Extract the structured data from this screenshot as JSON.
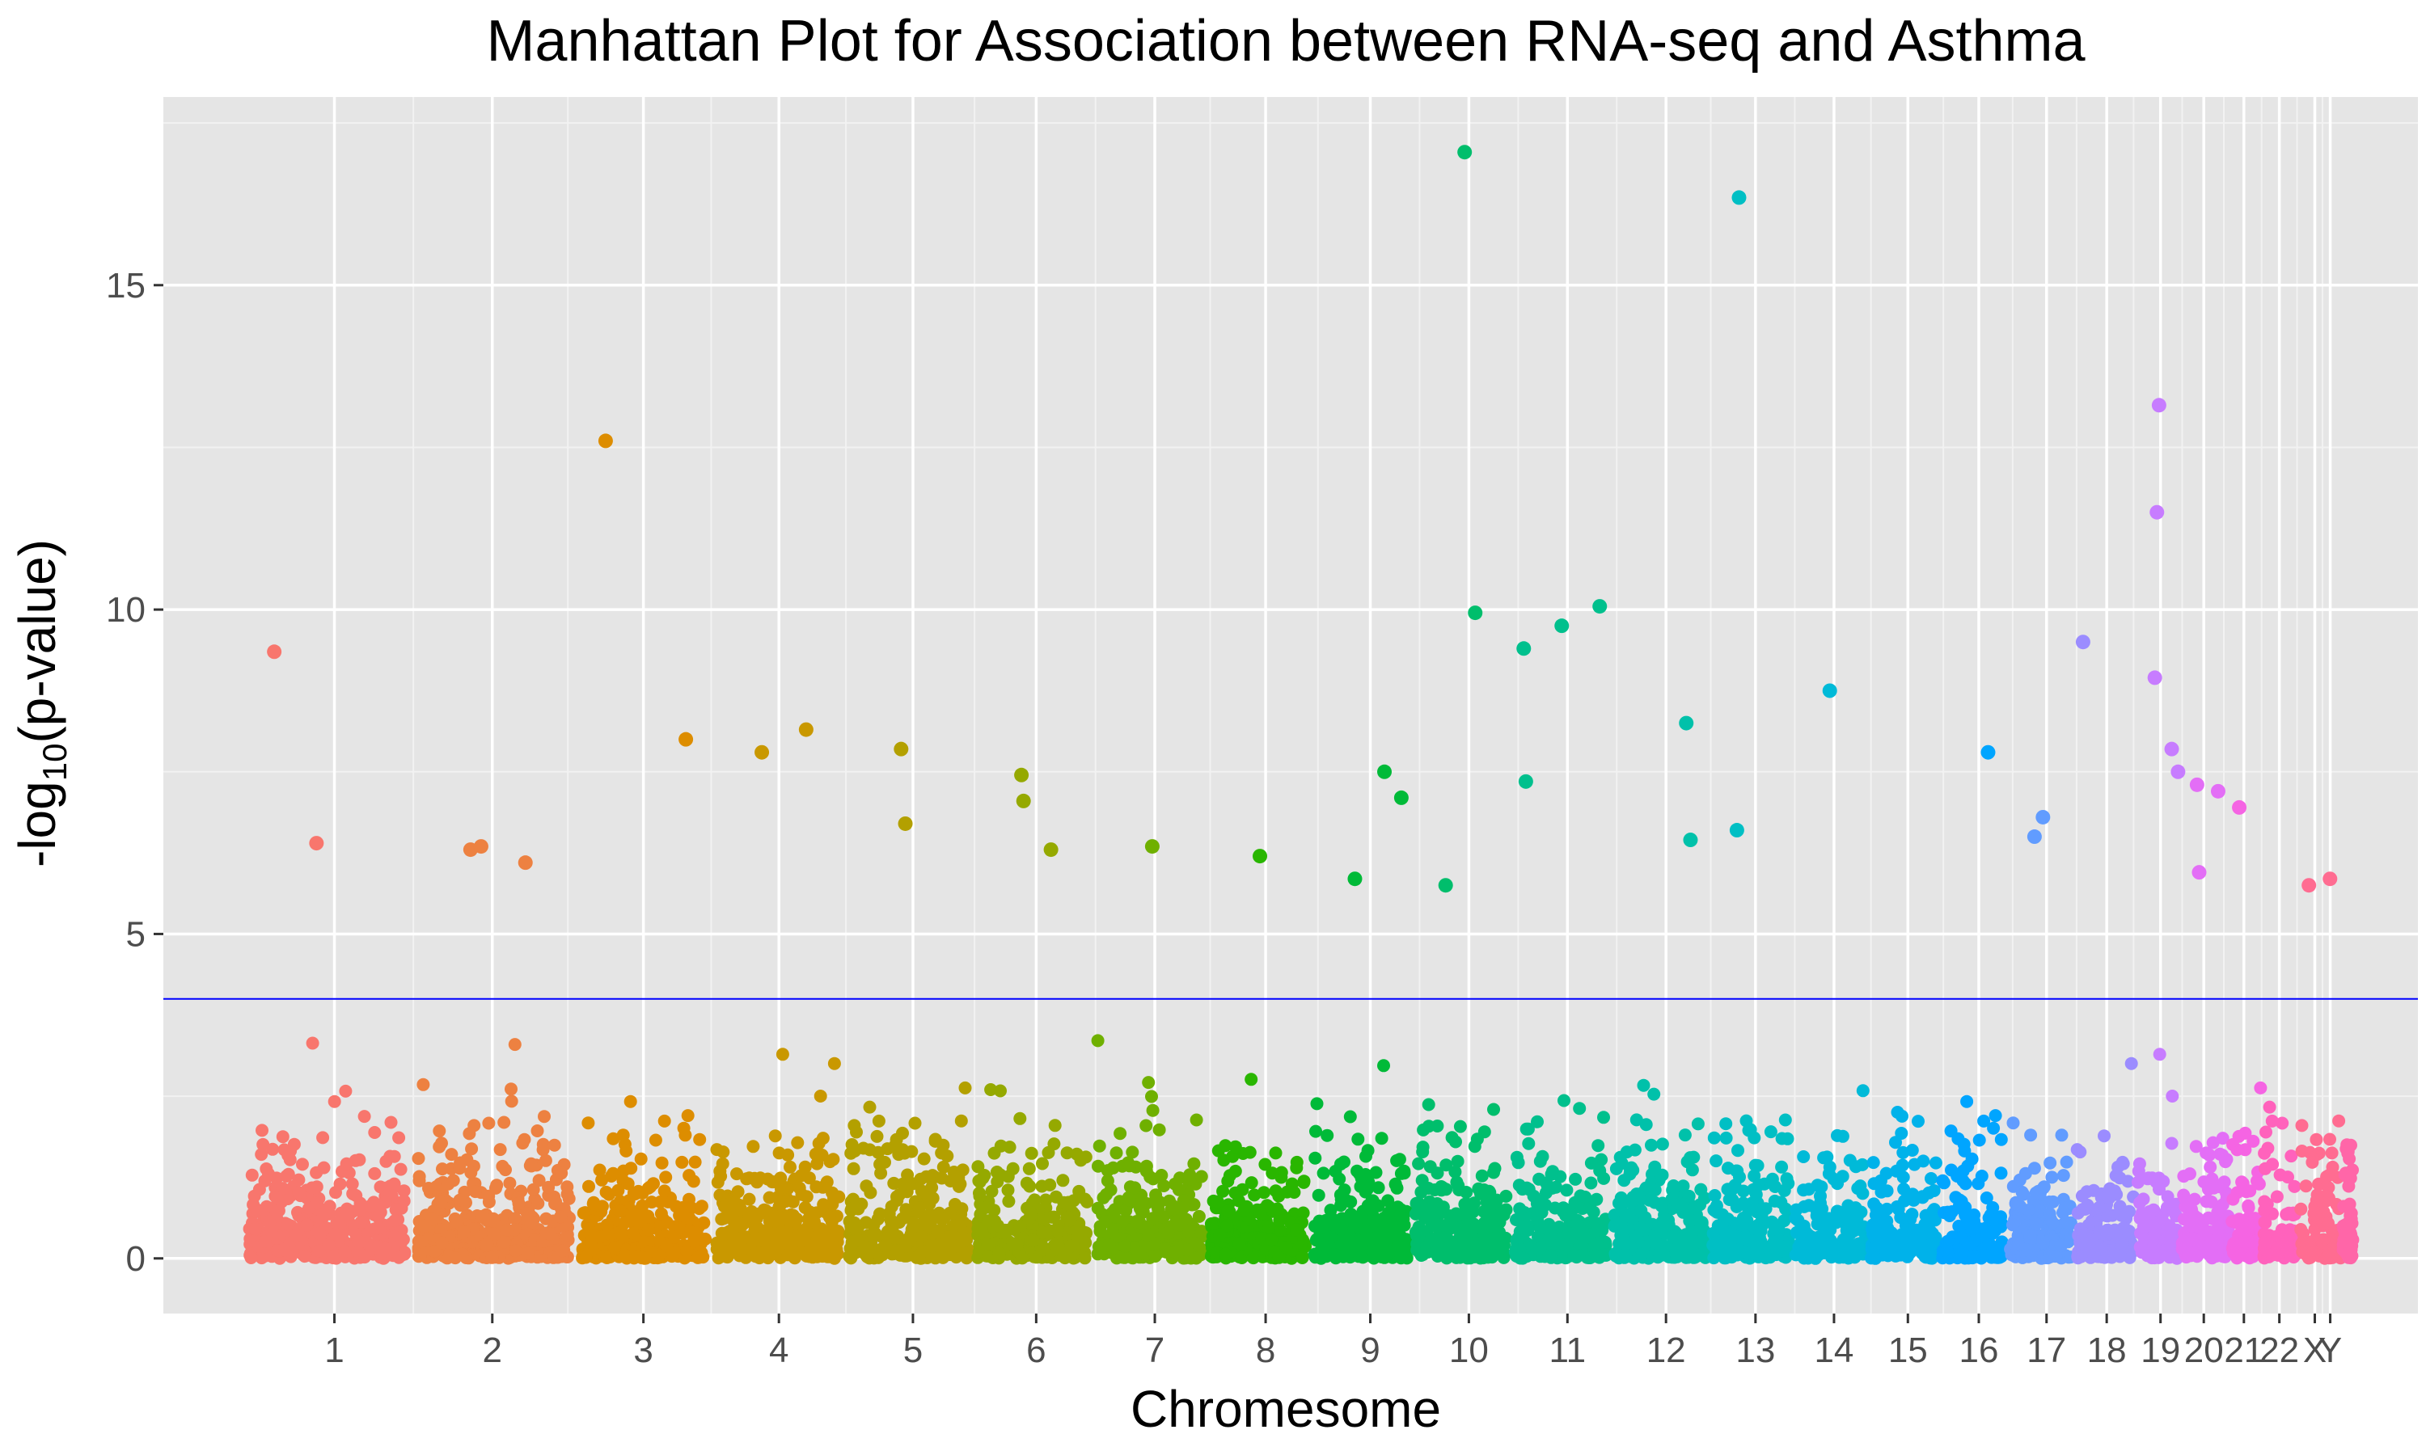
{
  "chart_data": {
    "type": "scatter",
    "title": "Manhattan Plot for Association between RNA-seq and Asthma",
    "xlabel": "Chromesome",
    "ylabel": {
      "main": "-log",
      "sub": "10",
      "rest": "(p-value)"
    },
    "ylim": [
      -0.85,
      17.9
    ],
    "yticks": [
      0,
      5,
      10,
      15
    ],
    "threshold": {
      "y": 4,
      "color": "#0000ff"
    },
    "grid": true,
    "legend": "none",
    "background": "#e5e5e5",
    "chromosomes": [
      {
        "label": "1",
        "color": "#f8766d",
        "start": 0.0,
        "end": 0.08,
        "tick": 0.0435
      },
      {
        "label": "2",
        "color": "#ed8141",
        "start": 0.08,
        "end": 0.158,
        "tick": 0.1183
      },
      {
        "label": "3",
        "color": "#dd8d00",
        "start": 0.158,
        "end": 0.222,
        "tick": 0.1899
      },
      {
        "label": "4",
        "color": "#c99800",
        "start": 0.222,
        "end": 0.285,
        "tick": 0.2541
      },
      {
        "label": "5",
        "color": "#b3a000",
        "start": 0.285,
        "end": 0.346,
        "tick": 0.3176
      },
      {
        "label": "6",
        "color": "#95a900",
        "start": 0.346,
        "end": 0.403,
        "tick": 0.376
      },
      {
        "label": "7",
        "color": "#6fb000",
        "start": 0.403,
        "end": 0.457,
        "tick": 0.4322
      },
      {
        "label": "8",
        "color": "#29b600",
        "start": 0.457,
        "end": 0.506,
        "tick": 0.4847
      },
      {
        "label": "9",
        "color": "#00ba38",
        "start": 0.506,
        "end": 0.554,
        "tick": 0.5343
      },
      {
        "label": "10",
        "color": "#00be6c",
        "start": 0.554,
        "end": 0.601,
        "tick": 0.581
      },
      {
        "label": "11",
        "color": "#00c08d",
        "start": 0.601,
        "end": 0.648,
        "tick": 0.6277
      },
      {
        "label": "12",
        "color": "#00c1aa",
        "start": 0.648,
        "end": 0.695,
        "tick": 0.6744
      },
      {
        "label": "13",
        "color": "#00bfc4",
        "start": 0.695,
        "end": 0.734,
        "tick": 0.7168
      },
      {
        "label": "14",
        "color": "#00bad8",
        "start": 0.734,
        "end": 0.77,
        "tick": 0.754
      },
      {
        "label": "15",
        "color": "#00b2ea",
        "start": 0.77,
        "end": 0.804,
        "tick": 0.789
      },
      {
        "label": "16",
        "color": "#00a5ff",
        "start": 0.804,
        "end": 0.836,
        "tick": 0.8226
      },
      {
        "label": "17",
        "color": "#619cff",
        "start": 0.836,
        "end": 0.868,
        "tick": 0.8547
      },
      {
        "label": "18",
        "color": "#9b8cff",
        "start": 0.868,
        "end": 0.897,
        "tick": 0.8832
      },
      {
        "label": "19",
        "color": "#c77cff",
        "start": 0.897,
        "end": 0.918,
        "tick": 0.9087
      },
      {
        "label": "20",
        "color": "#e36ef6",
        "start": 0.918,
        "end": 0.942,
        "tick": 0.9292
      },
      {
        "label": "21",
        "color": "#f564e3",
        "start": 0.942,
        "end": 0.957,
        "tick": 0.9482
      },
      {
        "label": "22",
        "color": "#ff62bc",
        "start": 0.957,
        "end": 0.974,
        "tick": 0.965
      },
      {
        "label": "X",
        "color": "#ff6c91",
        "start": 0.974,
        "end": 0.995,
        "tick": 0.9818
      },
      {
        "label": "Y",
        "color": "#ff66a8",
        "start": 0.995,
        "end": 1.0,
        "tick": 0.9891
      }
    ],
    "notable_points": [
      {
        "chrom": "1",
        "x": 0.015,
        "y": 9.35
      },
      {
        "chrom": "1",
        "x": 0.035,
        "y": 6.4
      },
      {
        "chrom": "2",
        "x": 0.108,
        "y": 6.3
      },
      {
        "chrom": "2",
        "x": 0.113,
        "y": 6.35
      },
      {
        "chrom": "2",
        "x": 0.134,
        "y": 6.1
      },
      {
        "chrom": "3",
        "x": 0.172,
        "y": 12.6
      },
      {
        "chrom": "3",
        "x": 0.21,
        "y": 8.0
      },
      {
        "chrom": "4",
        "x": 0.246,
        "y": 7.8
      },
      {
        "chrom": "4",
        "x": 0.267,
        "y": 8.15
      },
      {
        "chrom": "5",
        "x": 0.312,
        "y": 7.85
      },
      {
        "chrom": "5",
        "x": 0.314,
        "y": 6.7
      },
      {
        "chrom": "6",
        "x": 0.369,
        "y": 7.45
      },
      {
        "chrom": "6",
        "x": 0.37,
        "y": 7.05
      },
      {
        "chrom": "6",
        "x": 0.383,
        "y": 6.3
      },
      {
        "chrom": "7",
        "x": 0.431,
        "y": 6.35
      },
      {
        "chrom": "8",
        "x": 0.482,
        "y": 6.2
      },
      {
        "chrom": "9",
        "x": 0.527,
        "y": 5.85
      },
      {
        "chrom": "9",
        "x": 0.541,
        "y": 7.5
      },
      {
        "chrom": "9",
        "x": 0.549,
        "y": 7.1
      },
      {
        "chrom": "10",
        "x": 0.57,
        "y": 5.75
      },
      {
        "chrom": "10",
        "x": 0.579,
        "y": 17.05
      },
      {
        "chrom": "10",
        "x": 0.584,
        "y": 9.95
      },
      {
        "chrom": "11",
        "x": 0.607,
        "y": 9.4
      },
      {
        "chrom": "11",
        "x": 0.608,
        "y": 7.35
      },
      {
        "chrom": "11",
        "x": 0.625,
        "y": 9.75
      },
      {
        "chrom": "11",
        "x": 0.643,
        "y": 10.05
      },
      {
        "chrom": "12",
        "x": 0.684,
        "y": 8.25
      },
      {
        "chrom": "12",
        "x": 0.686,
        "y": 6.45
      },
      {
        "chrom": "13",
        "x": 0.709,
        "y": 16.35
      },
      {
        "chrom": "13",
        "x": 0.708,
        "y": 6.6
      },
      {
        "chrom": "14",
        "x": 0.752,
        "y": 8.75
      },
      {
        "chrom": "16",
        "x": 0.827,
        "y": 7.8
      },
      {
        "chrom": "17",
        "x": 0.853,
        "y": 6.8
      },
      {
        "chrom": "17",
        "x": 0.849,
        "y": 6.5
      },
      {
        "chrom": "18",
        "x": 0.872,
        "y": 9.5
      },
      {
        "chrom": "19",
        "x": 0.908,
        "y": 13.15
      },
      {
        "chrom": "19",
        "x": 0.907,
        "y": 11.5
      },
      {
        "chrom": "19",
        "x": 0.906,
        "y": 8.95
      },
      {
        "chrom": "19",
        "x": 0.914,
        "y": 7.85
      },
      {
        "chrom": "19",
        "x": 0.917,
        "y": 7.5
      },
      {
        "chrom": "20",
        "x": 0.926,
        "y": 7.3
      },
      {
        "chrom": "20",
        "x": 0.936,
        "y": 7.2
      },
      {
        "chrom": "20",
        "x": 0.927,
        "y": 5.95
      },
      {
        "chrom": "21",
        "x": 0.946,
        "y": 6.95
      },
      {
        "chrom": "X",
        "x": 0.979,
        "y": 5.75
      },
      {
        "chrom": "X",
        "x": 0.989,
        "y": 5.85
      }
    ]
  }
}
